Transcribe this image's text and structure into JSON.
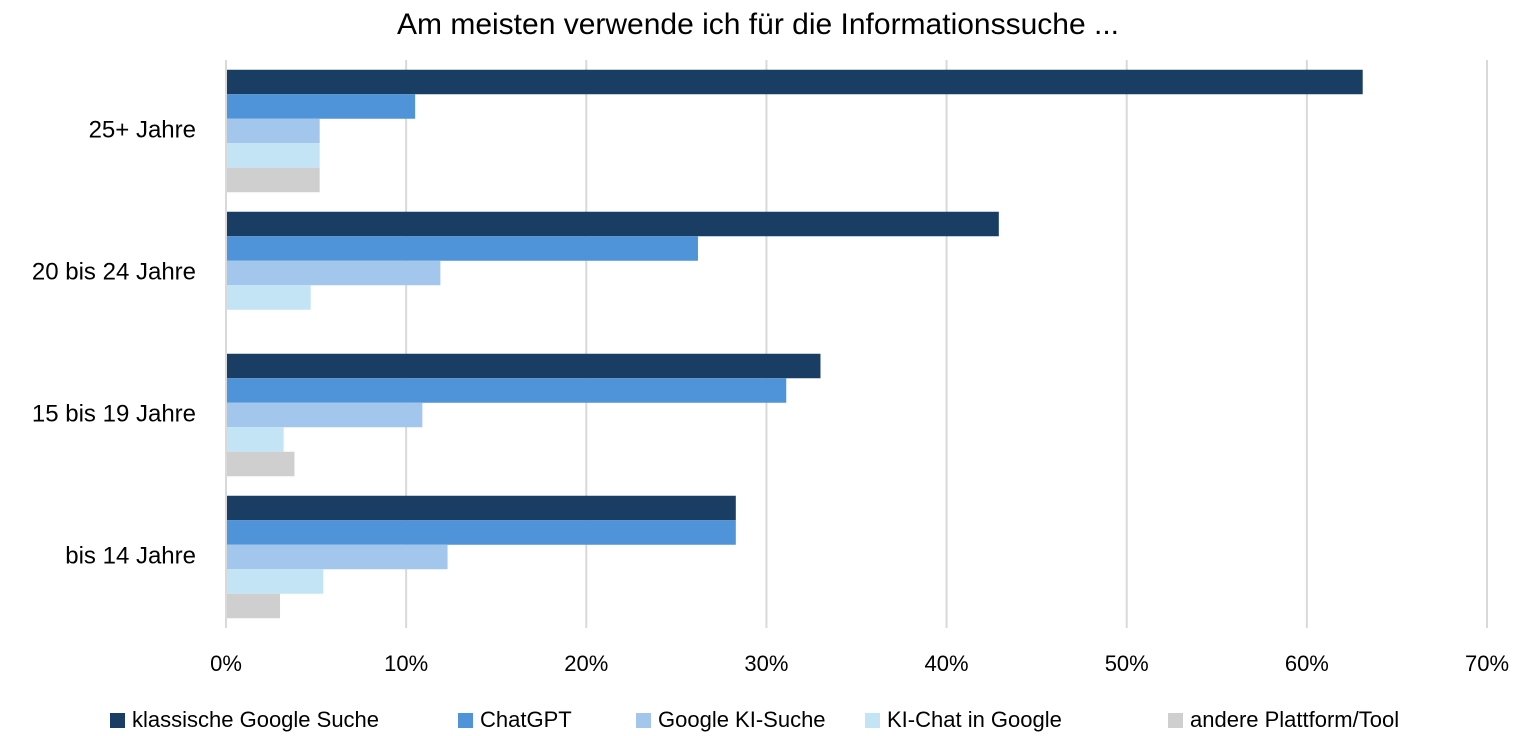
{
  "chart_data": {
    "type": "hbar",
    "title": "Am meisten verwende ich für die Informationssuche ...",
    "categories": [
      "25+ Jahre",
      "20 bis 24 Jahre",
      "15 bis 19 Jahre",
      "bis 14 Jahre"
    ],
    "series": [
      {
        "name": "klassische Google Suche",
        "color": "#1a3d63",
        "values": [
          63.1,
          42.9,
          33.0,
          28.3
        ]
      },
      {
        "name": "ChatGPT",
        "color": "#4f94d9",
        "values": [
          10.5,
          26.2,
          31.1,
          28.3
        ]
      },
      {
        "name": "Google KI-Suche",
        "color": "#a3c6ec",
        "values": [
          5.2,
          11.9,
          10.9,
          12.3
        ]
      },
      {
        "name": "KI-Chat in Google",
        "color": "#c2e4f5",
        "values": [
          5.2,
          4.7,
          3.2,
          5.4
        ]
      },
      {
        "name": "andere Plattform/Tool",
        "color": "#cfcfcf",
        "values": [
          5.2,
          0,
          3.8,
          3.0
        ]
      }
    ],
    "xlim": [
      0,
      70
    ],
    "xticks": [
      {
        "value": 0,
        "label": "0%"
      },
      {
        "value": 10,
        "label": "10%"
      },
      {
        "value": 20,
        "label": "20%"
      },
      {
        "value": 30,
        "label": "30%"
      },
      {
        "value": 40,
        "label": "40%"
      },
      {
        "value": 50,
        "label": "50%"
      },
      {
        "value": 60,
        "label": "60%"
      },
      {
        "value": 70,
        "label": "70%"
      }
    ],
    "grid": true,
    "legend": "bottom"
  }
}
